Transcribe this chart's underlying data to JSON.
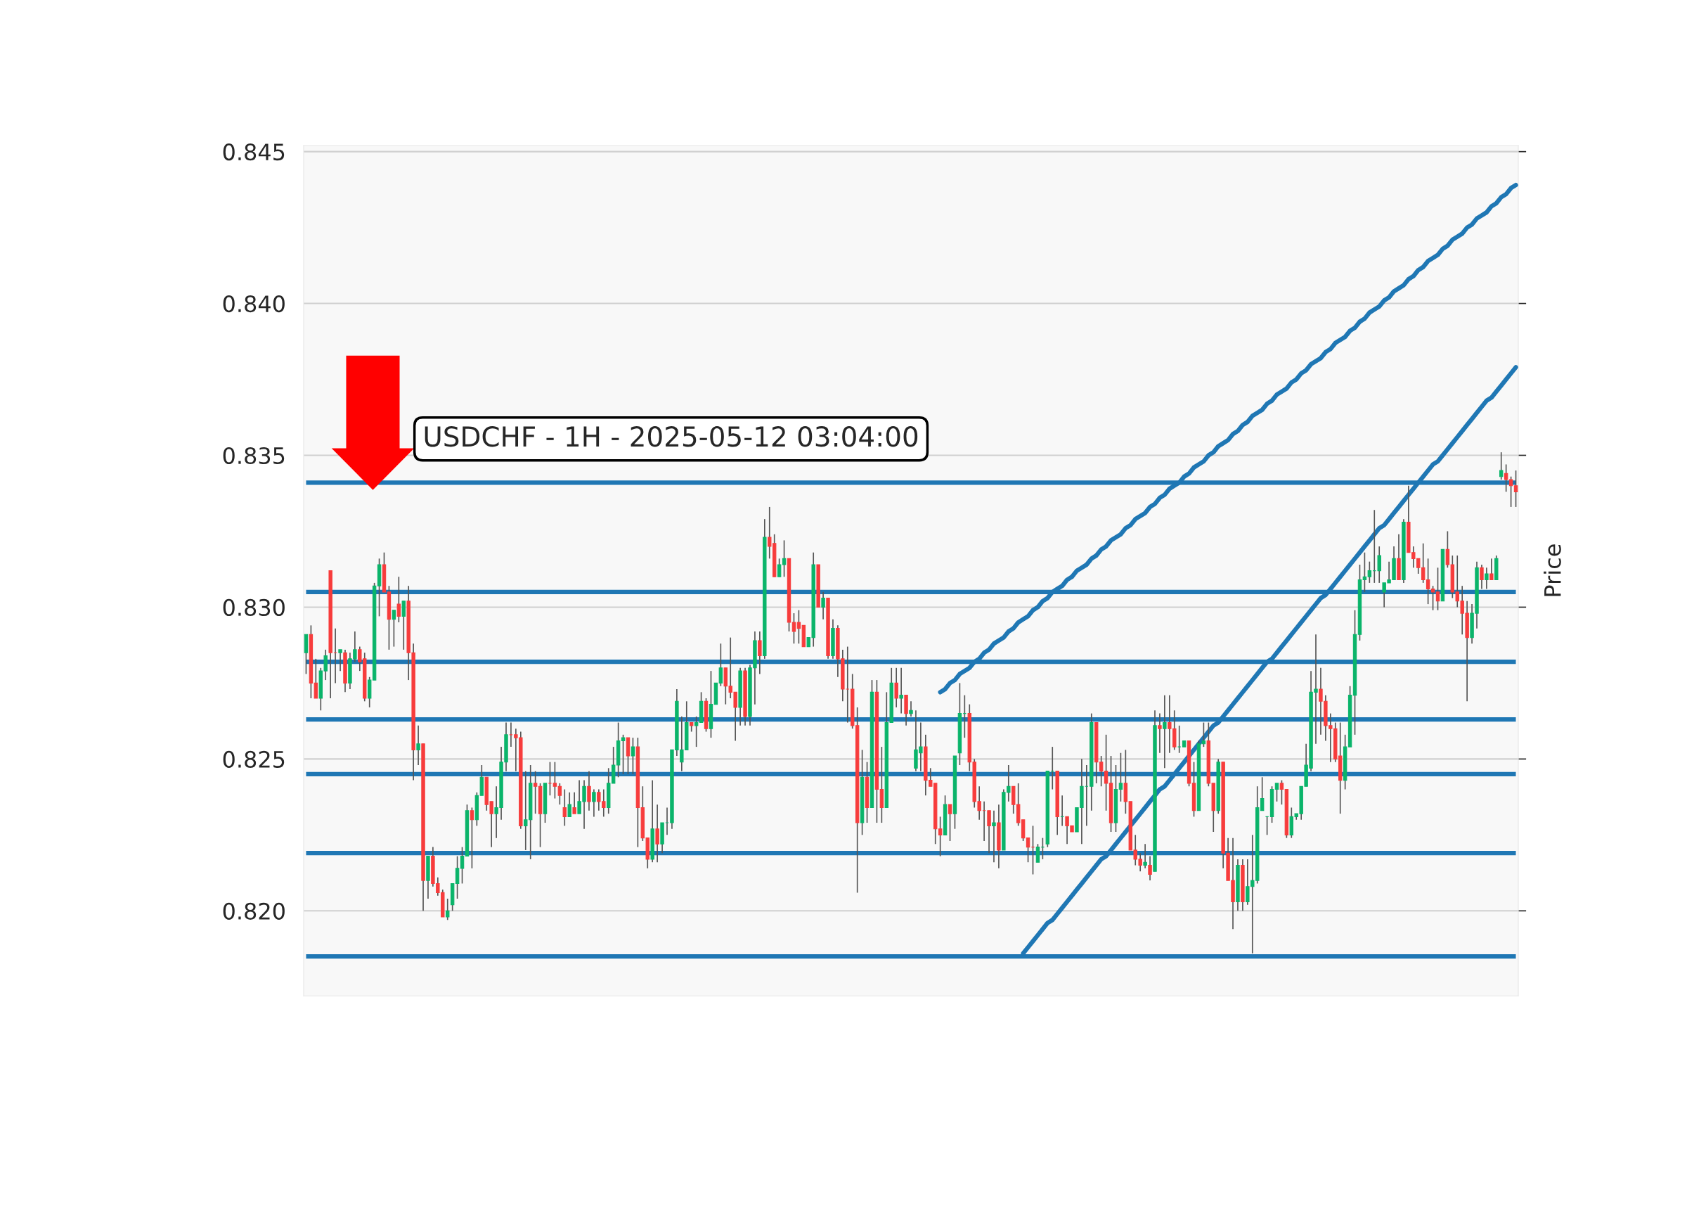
{
  "chart_data": {
    "type": "candlestick",
    "title": "USDCHF - 1H - 2025-05-12 03:04:00",
    "y2label": "Price",
    "categories": [
      null,
      null,
      null,
      null,
      null,
      null,
      null,
      null,
      null,
      null,
      null,
      null,
      null,
      null,
      null,
      null,
      null,
      null,
      null,
      null,
      null,
      null,
      null,
      null,
      null,
      null,
      null,
      null,
      null,
      null,
      null,
      null,
      null,
      null,
      null,
      null,
      null,
      null,
      null,
      null,
      null,
      null,
      null,
      null,
      null,
      null,
      null,
      null,
      null,
      null,
      null,
      null,
      null,
      null,
      null,
      null,
      null,
      null,
      null,
      null,
      null,
      null,
      null,
      null,
      null,
      null,
      null,
      null,
      null,
      null,
      null,
      null,
      null,
      null,
      null,
      null,
      null,
      null,
      null,
      null,
      null,
      null,
      null,
      null,
      null,
      null,
      null,
      null,
      null,
      null,
      null,
      null,
      null,
      null,
      null,
      null,
      null,
      null,
      null,
      null,
      null,
      null,
      null,
      null,
      null,
      null,
      null,
      null,
      null,
      null,
      null,
      null,
      null,
      null,
      null,
      null,
      null,
      null,
      null,
      null,
      null,
      null,
      null,
      null,
      null,
      null,
      null,
      null,
      null,
      null,
      null,
      null,
      null,
      null,
      null,
      null,
      null,
      null,
      null,
      null,
      null,
      null,
      null,
      null,
      null,
      null,
      null,
      null,
      null,
      null,
      null,
      null,
      null,
      null,
      null,
      null,
      null,
      null,
      null,
      null,
      null,
      null,
      null,
      null,
      null,
      null,
      null,
      null,
      null,
      null,
      null,
      null,
      null,
      null,
      null,
      null,
      null,
      null,
      null,
      null,
      null,
      null,
      null,
      null,
      null,
      null,
      null,
      null,
      null,
      null,
      null,
      null,
      null,
      null,
      null,
      null,
      null,
      null,
      null,
      null,
      null,
      null,
      null,
      null,
      null,
      null,
      null,
      null,
      null,
      null,
      null,
      null,
      null,
      null,
      null,
      null,
      null,
      null,
      null,
      null,
      null,
      null,
      null,
      null,
      null,
      null,
      null,
      null,
      null,
      null,
      null,
      null,
      null,
      null,
      null,
      null,
      null,
      null,
      null,
      null,
      null,
      null,
      null,
      null,
      null,
      null,
      null,
      null,
      null
    ],
    "colors": [
      "#0ab46a",
      "#f73c3c",
      "#f73c3c",
      "#0ab46a",
      "#0ab46a",
      "#f73c3c",
      "#f73c3c",
      "#0ab46a",
      "#f73c3c",
      "#0ab46a",
      "#0ab46a",
      "#f73c3c",
      "#f73c3c",
      "#0ab46a",
      "#0ab46a",
      "#0ab46a",
      "#f73c3c",
      "#f73c3c",
      "#0ab46a",
      "#f73c3c",
      "#0ab46a",
      "#f73c3c",
      "#f73c3c",
      "#0ab46a",
      "#f73c3c",
      "#0ab46a",
      "#f73c3c",
      "#f73c3c",
      "#f73c3c",
      "#0ab46a",
      "#0ab46a",
      "#0ab46a",
      "#0ab46a",
      "#0ab46a",
      "#f73c3c",
      "#0ab46a",
      "#0ab46a",
      "#f73c3c",
      "#f73c3c",
      "#0ab46a",
      "#0ab46a",
      "#0ab46a",
      "#f73c3c",
      "#f73c3c",
      "#f73c3c",
      "#0ab46a",
      "#0ab46a",
      "#f73c3c",
      "#f73c3c",
      "#0ab46a",
      "#f73c3c",
      "#f73c3c",
      "#f73c3c",
      "#f73c3c",
      "#0ab46a",
      "#f73c3c",
      "#0ab46a",
      "#0ab46a",
      "#f73c3c",
      "#0ab46a",
      "#f73c3c",
      "#f73c3c",
      "#0ab46a",
      "#0ab46a",
      "#0ab46a",
      "#0ab46a",
      "#f73c3c",
      "#0ab46a",
      "#f73c3c",
      "#f73c3c",
      "#f73c3c",
      "#0ab46a",
      "#f73c3c",
      "#0ab46a",
      "#0ab46a",
      "#0ab46a",
      "#0ab46a",
      "#0ab46a",
      "#0ab46a",
      "#f73c3c",
      "#0ab46a",
      "#0ab46a",
      "#f73c3c",
      "#0ab46a",
      "#0ab46a",
      "#0ab46a",
      "#f73c3c",
      "#f73c3c",
      "#f73c3c",
      "#0ab46a",
      "#f73c3c",
      "#0ab46a",
      "#0ab46a",
      "#f73c3c",
      "#0ab46a",
      "#f73c3c",
      "#f73c3c",
      "#0ab46a",
      "#0ab46a",
      "#f73c3c",
      "#f73c3c",
      "#f73c3c",
      "#f73c3c",
      "#0ab46a",
      "#0ab46a",
      "#f73c3c",
      "#0ab46a",
      "#f73c3c",
      "#0ab46a",
      "#f73c3c",
      "#f73c3c",
      "#f73c3c",
      "#f73c3c",
      "#f73c3c",
      "#0ab46a",
      "#f73c3c",
      "#0ab46a",
      "#f73c3c",
      "#f73c3c",
      "#0ab46a",
      "#0ab46a",
      "#f73c3c",
      "#0ab46a",
      "#f73c3c",
      "#0ab46a",
      "#0ab46a",
      "#0ab46a",
      "#f73c3c",
      "#f73c3c",
      "#f73c3c",
      "#f73c3c",
      "#0ab46a",
      "#f73c3c",
      "#0ab46a",
      "#0ab46a",
      "#0ab46a",
      "#f73c3c",
      "#f73c3c",
      "#f73c3c",
      "#f73c3c",
      "#f73c3c",
      "#0ab46a",
      "#f73c3c",
      "#0ab46a",
      "#0ab46a",
      "#f73c3c",
      "#f73c3c",
      "#f73c3c",
      "#f73c3c",
      "#f73c3c",
      "#0ab46a",
      "#0ab46a",
      "#0ab46a",
      "#0ab46a",
      "#f73c3c",
      "#0ab46a",
      "#f73c3c",
      "#f73c3c",
      "#0ab46a",
      "#0ab46a",
      "#0ab46a",
      "#0ab46a",
      "#f73c3c",
      "#f73c3c",
      "#f73c3c",
      "#f73c3c",
      "#0ab46a",
      "#0ab46a",
      "#f73c3c",
      "#f73c3c",
      "#f73c3c",
      "#f73c3c",
      "#0ab46a",
      "#f73c3c",
      "#0ab46a",
      "#f73c3c",
      "#0ab46a",
      "#f73c3c",
      "#f73c3c",
      "#0ab46a",
      "#0ab46a",
      "#f73c3c",
      "#f73c3c",
      "#0ab46a",
      "#0ab46a",
      "#f73c3c",
      "#f73c3c",
      "#0ab46a",
      "#f73c3c",
      "#f73c3c",
      "#f73c3c",
      "#0ab46a",
      "#f73c3c",
      "#0ab46a",
      "#0ab46a",
      "#0ab46a",
      "#0ab46a",
      "#0ab46a",
      "#0ab46a",
      "#0ab46a",
      "#f73c3c",
      "#f73c3c",
      "#0ab46a",
      "#0ab46a",
      "#0ab46a",
      "#0ab46a",
      "#0ab46a",
      "#0ab46a",
      "#f73c3c",
      "#f73c3c",
      "#f73c3c",
      "#f73c3c",
      "#f73c3c",
      "#0ab46a",
      "#0ab46a",
      "#0ab46a",
      "#0ab46a",
      "#0ab46a",
      "#0ab46a",
      "#0ab46a",
      "#0ab46a",
      "#0ab46a",
      "#0ab46a",
      "#0ab46a",
      "#f73c3c",
      "#0ab46a",
      "#f73c3c",
      "#f73c3c",
      "#f73c3c",
      "#f73c3c",
      "#f73c3c",
      "#f73c3c",
      "#f73c3c",
      "#0ab46a",
      "#f73c3c",
      "#f73c3c",
      "#f73c3c",
      "#f73c3c",
      "#f73c3c",
      "#0ab46a",
      "#0ab46a",
      "#f73c3c",
      "#0ab46a",
      "#f73c3c",
      "#0ab46a",
      "#0ab46a",
      "#f73c3c",
      "#f73c3c",
      "#f73c3c"
    ],
    "ylim": [
      0.8172,
      0.8452
    ],
    "yticks": [
      {
        "value": 0.82,
        "label": "0.820"
      },
      {
        "value": 0.825,
        "label": "0.825"
      },
      {
        "value": 0.83,
        "label": "0.830"
      },
      {
        "value": 0.835,
        "label": "0.835"
      },
      {
        "value": 0.84,
        "label": "0.840"
      },
      {
        "value": 0.845,
        "label": "0.845"
      }
    ],
    "grid": "y",
    "tick_labels": "y",
    "ref_lines": [
      {
        "axis": "y",
        "value": 0.8341,
        "color": "#1f77b4"
      },
      {
        "axis": "y",
        "value": 0.8305,
        "color": "#1f77b4"
      },
      {
        "axis": "y",
        "value": 0.8282,
        "color": "#1f77b4"
      },
      {
        "axis": "y",
        "value": 0.8263,
        "color": "#1f77b4"
      },
      {
        "axis": "y",
        "value": 0.8245,
        "color": "#1f77b4"
      },
      {
        "axis": "y",
        "value": 0.8219,
        "color": "#1f77b4"
      },
      {
        "axis": "y",
        "value": 0.8185,
        "color": "#1f77b4"
      }
    ],
    "series": [
      {
        "type": "line",
        "color": "#1f77b4",
        "values": [
          null,
          null,
          null,
          null,
          null,
          null,
          null,
          null,
          null,
          null,
          null,
          null,
          null,
          null,
          null,
          null,
          null,
          null,
          null,
          null,
          null,
          null,
          null,
          null,
          null,
          null,
          null,
          null,
          null,
          null,
          null,
          null,
          null,
          null,
          null,
          null,
          null,
          null,
          null,
          null,
          null,
          null,
          null,
          null,
          null,
          null,
          null,
          null,
          null,
          null,
          null,
          null,
          null,
          null,
          null,
          null,
          null,
          null,
          null,
          null,
          null,
          null,
          null,
          null,
          null,
          null,
          null,
          null,
          null,
          null,
          null,
          null,
          null,
          null,
          null,
          null,
          null,
          null,
          null,
          null,
          null,
          null,
          null,
          null,
          null,
          null,
          null,
          null,
          null,
          null,
          null,
          null,
          null,
          null,
          null,
          null,
          null,
          null,
          null,
          null,
          null,
          null,
          null,
          null,
          null,
          null,
          null,
          null,
          null,
          null,
          null,
          null,
          null,
          null,
          null,
          null,
          null,
          null,
          null,
          null,
          null,
          null,
          null,
          null,
          null,
          null,
          null,
          null,
          null,
          null,
          0.8272,
          0.8273,
          0.8275,
          0.8276,
          0.8278,
          0.8279,
          0.828,
          0.8282,
          0.8283,
          0.8285,
          0.8286,
          0.8288,
          0.8289,
          0.829,
          0.8292,
          0.8293,
          0.8295,
          0.8296,
          0.8297,
          0.8299,
          0.83,
          0.8302,
          0.8303,
          0.8305,
          0.8306,
          0.8307,
          0.8309,
          0.831,
          0.8312,
          0.8313,
          0.8314,
          0.8316,
          0.8317,
          0.8319,
          0.832,
          0.8322,
          0.8323,
          0.8324,
          0.8326,
          0.8327,
          0.8329,
          0.833,
          0.8331,
          0.8333,
          0.8334,
          0.8336,
          0.8337,
          0.8339,
          0.834,
          0.8341,
          0.8343,
          0.8344,
          0.8346,
          0.8347,
          0.8348,
          0.835,
          0.8351,
          0.8353,
          0.8354,
          0.8355,
          0.8357,
          0.8358,
          0.836,
          0.8361,
          0.8363,
          0.8364,
          0.8365,
          0.8367,
          0.8368,
          0.837,
          0.8371,
          0.8372,
          0.8374,
          0.8375,
          0.8377,
          0.8378,
          0.838,
          0.8381,
          0.8382,
          0.8384,
          0.8385,
          0.8387,
          0.8388,
          0.8389,
          0.8391,
          0.8392,
          0.8394,
          0.8395,
          0.8397,
          0.8398,
          0.8399,
          0.8401,
          0.8402,
          0.8404,
          0.8405,
          0.8406,
          0.8408,
          0.8409,
          0.8411,
          0.8412,
          0.8414,
          0.8415,
          0.8416,
          0.8418,
          0.8419,
          0.8421,
          0.8422,
          0.8423,
          0.8425,
          0.8426,
          0.8428,
          0.8429,
          0.843,
          0.8432,
          0.8433,
          0.8435,
          0.8436,
          0.8438,
          0.8439
        ]
      },
      {
        "type": "line",
        "color": "#1f77b4",
        "values": [
          null,
          null,
          null,
          null,
          null,
          null,
          null,
          null,
          null,
          null,
          null,
          null,
          null,
          null,
          null,
          null,
          null,
          null,
          null,
          null,
          null,
          null,
          null,
          null,
          null,
          null,
          null,
          null,
          null,
          null,
          null,
          null,
          null,
          null,
          null,
          null,
          null,
          null,
          null,
          null,
          null,
          null,
          null,
          null,
          null,
          null,
          null,
          null,
          null,
          null,
          null,
          null,
          null,
          null,
          null,
          null,
          null,
          null,
          null,
          null,
          null,
          null,
          null,
          null,
          null,
          null,
          null,
          null,
          null,
          null,
          null,
          null,
          null,
          null,
          null,
          null,
          null,
          null,
          null,
          null,
          null,
          null,
          null,
          null,
          null,
          null,
          null,
          null,
          null,
          null,
          null,
          null,
          null,
          null,
          null,
          null,
          null,
          null,
          null,
          null,
          null,
          null,
          null,
          null,
          null,
          null,
          null,
          null,
          null,
          null,
          null,
          null,
          null,
          null,
          null,
          null,
          null,
          null,
          null,
          null,
          null,
          null,
          null,
          null,
          null,
          null,
          null,
          null,
          null,
          null,
          null,
          null,
          null,
          null,
          null,
          null,
          null,
          null,
          null,
          null,
          null,
          null,
          null,
          null,
          null,
          null,
          null,
          0.8186,
          0.8188,
          0.819,
          0.8192,
          0.8194,
          0.8196,
          0.8197,
          0.8199,
          0.8201,
          0.8203,
          0.8205,
          0.8207,
          0.8209,
          0.8211,
          0.8213,
          0.8215,
          0.8217,
          0.8218,
          0.822,
          0.8222,
          0.8224,
          0.8226,
          0.8228,
          0.823,
          0.8232,
          0.8234,
          0.8236,
          0.8238,
          0.824,
          0.8241,
          0.8243,
          0.8245,
          0.8247,
          0.8249,
          0.8251,
          0.8253,
          0.8255,
          0.8257,
          0.8259,
          0.8261,
          0.8262,
          0.8264,
          0.8266,
          0.8268,
          0.827,
          0.8272,
          0.8274,
          0.8276,
          0.8278,
          0.828,
          0.8282,
          0.8283,
          0.8285,
          0.8287,
          0.8289,
          0.8291,
          0.8293,
          0.8295,
          0.8297,
          0.8299,
          0.8301,
          0.8303,
          0.8304,
          0.8306,
          0.8308,
          0.831,
          0.8312,
          0.8314,
          0.8316,
          0.8318,
          0.832,
          0.8322,
          0.8324,
          0.8326,
          0.8327,
          0.8329,
          0.8331,
          0.8333,
          0.8335,
          0.8337,
          0.8339,
          0.8341,
          0.8343,
          0.8345,
          0.8347,
          0.8348,
          0.835,
          0.8352,
          0.8354,
          0.8356,
          0.8358,
          0.836,
          0.8362,
          0.8364,
          0.8366,
          0.8368,
          0.8369,
          0.8371,
          0.8373,
          0.8375,
          0.8377,
          0.8379
        ]
      }
    ],
    "ohlc": [
      [
        0.8285,
        0.8291,
        0.8278,
        0.8291
      ],
      [
        0.8291,
        0.8294,
        0.827,
        0.8275
      ],
      [
        0.8275,
        0.8283,
        0.827,
        0.827
      ],
      [
        0.827,
        0.828,
        0.8266,
        0.8279
      ],
      [
        0.8279,
        0.8286,
        0.8276,
        0.8284
      ],
      [
        0.8312,
        0.8312,
        0.827,
        0.8285
      ],
      [
        0.8285,
        0.8293,
        0.8275,
        0.8285
      ],
      [
        0.8285,
        0.8286,
        0.8279,
        0.8286
      ],
      [
        0.8285,
        0.8286,
        0.8272,
        0.8275
      ],
      [
        0.8275,
        0.8285,
        0.8273,
        0.8283
      ],
      [
        0.8283,
        0.8292,
        0.8282,
        0.8286
      ],
      [
        0.8286,
        0.8287,
        0.8279,
        0.8282
      ],
      [
        0.8283,
        0.8285,
        0.8269,
        0.827
      ],
      [
        0.827,
        0.8277,
        0.8267,
        0.8276
      ],
      [
        0.8276,
        0.8308,
        0.8276,
        0.8307
      ],
      [
        0.8307,
        0.8316,
        0.8297,
        0.8314
      ],
      [
        0.8314,
        0.8318,
        0.8305,
        0.8305
      ],
      [
        0.8305,
        0.8307,
        0.8286,
        0.8296
      ],
      [
        0.8296,
        0.8299,
        0.8287,
        0.8299
      ],
      [
        0.8301,
        0.831,
        0.8295,
        0.8297
      ],
      [
        0.8297,
        0.8302,
        0.8286,
        0.8302
      ],
      [
        0.8302,
        0.8307,
        0.8276,
        0.8285
      ],
      [
        0.8285,
        0.8288,
        0.8243,
        0.8253
      ],
      [
        0.8253,
        0.8261,
        0.8248,
        0.8255
      ],
      [
        0.8255,
        0.8255,
        0.82,
        0.821
      ],
      [
        0.821,
        0.8218,
        0.8204,
        0.8218
      ],
      [
        0.8218,
        0.8221,
        0.8208,
        0.8209
      ],
      [
        0.8209,
        0.8211,
        0.8205,
        0.8206
      ],
      [
        0.8206,
        0.8207,
        0.8198,
        0.8198
      ],
      [
        0.8198,
        0.8204,
        0.8197,
        0.82
      ],
      [
        0.8202,
        0.8209,
        0.82,
        0.8209
      ],
      [
        0.8209,
        0.8218,
        0.8204,
        0.8214
      ],
      [
        0.8214,
        0.8221,
        0.8209,
        0.8218
      ],
      [
        0.8218,
        0.8235,
        0.8218,
        0.8233
      ],
      [
        0.8233,
        0.8234,
        0.8214,
        0.823
      ],
      [
        0.823,
        0.8239,
        0.8228,
        0.8238
      ],
      [
        0.8238,
        0.8248,
        0.8238,
        0.8244
      ],
      [
        0.8244,
        0.8244,
        0.8233,
        0.8235
      ],
      [
        0.8236,
        0.8236,
        0.8221,
        0.8232
      ],
      [
        0.8232,
        0.8241,
        0.8224,
        0.8234
      ],
      [
        0.8234,
        0.8254,
        0.823,
        0.8249
      ],
      [
        0.8249,
        0.8262,
        0.8246,
        0.8258
      ],
      [
        0.8258,
        0.8262,
        0.8254,
        0.8258
      ],
      [
        0.8258,
        0.826,
        0.8246,
        0.8257
      ],
      [
        0.8257,
        0.8259,
        0.8227,
        0.8228
      ],
      [
        0.8228,
        0.8246,
        0.822,
        0.823
      ],
      [
        0.823,
        0.8248,
        0.8217,
        0.8242
      ],
      [
        0.8242,
        0.8246,
        0.8232,
        0.8241
      ],
      [
        0.8241,
        0.8242,
        0.8221,
        0.8232
      ],
      [
        0.8232,
        0.8242,
        0.8229,
        0.8242
      ],
      [
        0.8242,
        0.8249,
        0.8238,
        0.8242
      ],
      [
        0.8242,
        0.8249,
        0.8237,
        0.8241
      ],
      [
        0.8241,
        0.8242,
        0.8235,
        0.8238
      ],
      [
        0.8234,
        0.824,
        0.8228,
        0.8231
      ],
      [
        0.8231,
        0.8239,
        0.8231,
        0.8235
      ],
      [
        0.8234,
        0.8239,
        0.8232,
        0.8232
      ],
      [
        0.8232,
        0.8243,
        0.8232,
        0.8236
      ],
      [
        0.8236,
        0.8243,
        0.8227,
        0.8241
      ],
      [
        0.8241,
        0.8246,
        0.8233,
        0.8236
      ],
      [
        0.8236,
        0.824,
        0.8231,
        0.8239
      ],
      [
        0.8239,
        0.824,
        0.8233,
        0.8236
      ],
      [
        0.8236,
        0.824,
        0.8231,
        0.8234
      ],
      [
        0.8234,
        0.8247,
        0.8232,
        0.8242
      ],
      [
        0.8242,
        0.8254,
        0.8242,
        0.8248
      ],
      [
        0.8248,
        0.8262,
        0.8244,
        0.8256
      ],
      [
        0.8256,
        0.8258,
        0.8245,
        0.8257
      ],
      [
        0.8257,
        0.8257,
        0.8245,
        0.8251
      ],
      [
        0.8251,
        0.8257,
        0.8245,
        0.8254
      ],
      [
        0.8254,
        0.8257,
        0.8221,
        0.8234
      ],
      [
        0.8234,
        0.8241,
        0.8223,
        0.8224
      ],
      [
        0.8224,
        0.8224,
        0.8214,
        0.8217
      ],
      [
        0.8217,
        0.8243,
        0.8216,
        0.8227
      ],
      [
        0.8227,
        0.8235,
        0.8216,
        0.8222
      ],
      [
        0.8222,
        0.8229,
        0.8219,
        0.8229
      ],
      [
        0.8229,
        0.8234,
        0.8225,
        0.8229
      ],
      [
        0.8229,
        0.8253,
        0.8227,
        0.8253
      ],
      [
        0.8253,
        0.8273,
        0.8251,
        0.8269
      ],
      [
        0.8249,
        0.8264,
        0.8246,
        0.8253
      ],
      [
        0.8253,
        0.8269,
        0.8253,
        0.8262
      ],
      [
        0.8262,
        0.8262,
        0.8259,
        0.8261
      ],
      [
        0.8261,
        0.8264,
        0.8254,
        0.8262
      ],
      [
        0.8262,
        0.8272,
        0.8262,
        0.8269
      ],
      [
        0.8269,
        0.827,
        0.8259,
        0.826
      ],
      [
        0.826,
        0.8279,
        0.8257,
        0.8268
      ],
      [
        0.8268,
        0.8275,
        0.8268,
        0.8275
      ],
      [
        0.8275,
        0.8288,
        0.8274,
        0.828
      ],
      [
        0.828,
        0.828,
        0.8268,
        0.8274
      ],
      [
        0.8274,
        0.829,
        0.827,
        0.8272
      ],
      [
        0.8272,
        0.8272,
        0.8256,
        0.8267
      ],
      [
        0.8267,
        0.828,
        0.8261,
        0.8279
      ],
      [
        0.8279,
        0.828,
        0.8261,
        0.8264
      ],
      [
        0.8264,
        0.8281,
        0.8261,
        0.828
      ],
      [
        0.828,
        0.8292,
        0.8268,
        0.8289
      ],
      [
        0.8289,
        0.8292,
        0.8278,
        0.8284
      ],
      [
        0.8284,
        0.8329,
        0.8283,
        0.8323
      ],
      [
        0.8323,
        0.8333,
        0.8316,
        0.832
      ],
      [
        0.8321,
        0.8324,
        0.831,
        0.831
      ],
      [
        0.831,
        0.8316,
        0.831,
        0.8314
      ],
      [
        0.8314,
        0.8322,
        0.831,
        0.8316
      ],
      [
        0.8316,
        0.8316,
        0.8292,
        0.8295
      ],
      [
        0.8295,
        0.8298,
        0.8288,
        0.8292
      ],
      [
        0.8295,
        0.8299,
        0.8288,
        0.8293
      ],
      [
        0.8294,
        0.8294,
        0.8287,
        0.8287
      ],
      [
        0.8287,
        0.829,
        0.8287,
        0.829
      ],
      [
        0.829,
        0.8318,
        0.8287,
        0.8314
      ],
      [
        0.8314,
        0.8314,
        0.83,
        0.83
      ],
      [
        0.83,
        0.8305,
        0.8296,
        0.8303
      ],
      [
        0.8303,
        0.8303,
        0.8283,
        0.8284
      ],
      [
        0.8284,
        0.8296,
        0.8283,
        0.8293
      ],
      [
        0.8293,
        0.8294,
        0.8277,
        0.8283
      ],
      [
        0.8283,
        0.8286,
        0.8269,
        0.8273
      ],
      [
        0.8273,
        0.8287,
        0.8262,
        0.8273
      ],
      [
        0.8273,
        0.8278,
        0.826,
        0.8261
      ],
      [
        0.8261,
        0.8267,
        0.8206,
        0.8229
      ],
      [
        0.8229,
        0.8253,
        0.8225,
        0.8244
      ],
      [
        0.8244,
        0.8249,
        0.8229,
        0.8234
      ],
      [
        0.8234,
        0.8276,
        0.8234,
        0.8272
      ],
      [
        0.8272,
        0.8276,
        0.8229,
        0.824
      ],
      [
        0.824,
        0.8254,
        0.8229,
        0.8234
      ],
      [
        0.8234,
        0.8272,
        0.8234,
        0.8262
      ],
      [
        0.8262,
        0.828,
        0.8262,
        0.8275
      ],
      [
        0.8275,
        0.828,
        0.8267,
        0.827
      ],
      [
        0.827,
        0.828,
        0.8265,
        0.8271
      ],
      [
        0.8271,
        0.8271,
        0.8261,
        0.8265
      ],
      [
        0.8265,
        0.8269,
        0.8264,
        0.8266
      ],
      [
        0.8247,
        0.8266,
        0.8246,
        0.8253
      ],
      [
        0.8252,
        0.8262,
        0.8246,
        0.8254
      ],
      [
        0.8254,
        0.8258,
        0.8238,
        0.8243
      ],
      [
        0.8243,
        0.8247,
        0.8241,
        0.8241
      ],
      [
        0.8242,
        0.8242,
        0.8222,
        0.8227
      ],
      [
        0.8227,
        0.8231,
        0.8218,
        0.8225
      ],
      [
        0.8225,
        0.8238,
        0.8225,
        0.8235
      ],
      [
        0.8235,
        0.8235,
        0.8223,
        0.8232
      ],
      [
        0.8232,
        0.8251,
        0.8227,
        0.8251
      ],
      [
        0.8252,
        0.8275,
        0.8248,
        0.8265
      ],
      [
        0.8265,
        0.8271,
        0.8257,
        0.8265
      ],
      [
        0.8265,
        0.8268,
        0.8246,
        0.8249
      ],
      [
        0.8249,
        0.825,
        0.8234,
        0.8236
      ],
      [
        0.8236,
        0.8241,
        0.823,
        0.8233
      ],
      [
        0.8233,
        0.8236,
        0.8223,
        0.8233
      ],
      [
        0.8233,
        0.8233,
        0.8219,
        0.8228
      ],
      [
        0.8228,
        0.8233,
        0.8216,
        0.8229
      ],
      [
        0.8229,
        0.8235,
        0.8214,
        0.822
      ],
      [
        0.822,
        0.824,
        0.822,
        0.8239
      ],
      [
        0.8239,
        0.8248,
        0.8236,
        0.8241
      ],
      [
        0.8241,
        0.8241,
        0.8232,
        0.8235
      ],
      [
        0.8235,
        0.8242,
        0.8228,
        0.8229
      ],
      [
        0.823,
        0.823,
        0.8223,
        0.8224
      ],
      [
        0.8224,
        0.8224,
        0.8216,
        0.8221
      ],
      [
        0.8221,
        0.8228,
        0.8212,
        0.8221
      ],
      [
        0.8216,
        0.8222,
        0.8216,
        0.8221
      ],
      [
        0.8221,
        0.8224,
        0.8217,
        0.8221
      ],
      [
        0.8222,
        0.8246,
        0.8221,
        0.8246
      ],
      [
        0.8246,
        0.8254,
        0.824,
        0.8246
      ],
      [
        0.8246,
        0.8246,
        0.8225,
        0.8231
      ],
      [
        0.8231,
        0.8238,
        0.8228,
        0.8231
      ],
      [
        0.8231,
        0.8231,
        0.8222,
        0.8228
      ],
      [
        0.8228,
        0.8228,
        0.8226,
        0.8226
      ],
      [
        0.8226,
        0.8234,
        0.8226,
        0.8234
      ],
      [
        0.8234,
        0.825,
        0.8222,
        0.8241
      ],
      [
        0.8241,
        0.8248,
        0.8228,
        0.8241
      ],
      [
        0.8241,
        0.8265,
        0.8233,
        0.8262
      ],
      [
        0.8262,
        0.8262,
        0.8242,
        0.8249
      ],
      [
        0.8249,
        0.8251,
        0.8241,
        0.8246
      ],
      [
        0.8246,
        0.8258,
        0.8233,
        0.8242
      ],
      [
        0.8242,
        0.8251,
        0.8226,
        0.8229
      ],
      [
        0.8229,
        0.8248,
        0.8226,
        0.824
      ],
      [
        0.824,
        0.8252,
        0.8236,
        0.8242
      ],
      [
        0.8242,
        0.8253,
        0.8232,
        0.8236
      ],
      [
        0.8236,
        0.8236,
        0.822,
        0.822
      ],
      [
        0.822,
        0.8225,
        0.8215,
        0.8217
      ],
      [
        0.8217,
        0.8219,
        0.8213,
        0.8215
      ],
      [
        0.8215,
        0.8222,
        0.8214,
        0.8216
      ],
      [
        0.8215,
        0.8218,
        0.821,
        0.8212
      ],
      [
        0.8213,
        0.8266,
        0.8213,
        0.8261
      ],
      [
        0.8261,
        0.8265,
        0.8252,
        0.826
      ],
      [
        0.826,
        0.8271,
        0.8247,
        0.8262
      ],
      [
        0.8262,
        0.8271,
        0.8252,
        0.826
      ],
      [
        0.826,
        0.8266,
        0.8253,
        0.8254
      ],
      [
        0.8254,
        0.8261,
        0.8252,
        0.8254
      ],
      [
        0.8254,
        0.8256,
        0.8254,
        0.8256
      ],
      [
        0.8256,
        0.8256,
        0.8241,
        0.8242
      ],
      [
        0.8242,
        0.8249,
        0.8231,
        0.8233
      ],
      [
        0.8233,
        0.8256,
        0.8233,
        0.8255
      ],
      [
        0.8255,
        0.8262,
        0.8254,
        0.8256
      ],
      [
        0.8256,
        0.8262,
        0.8241,
        0.8242
      ],
      [
        0.8242,
        0.8242,
        0.8226,
        0.8233
      ],
      [
        0.8233,
        0.825,
        0.8232,
        0.8249
      ],
      [
        0.8249,
        0.8249,
        0.8214,
        0.8219
      ],
      [
        0.8219,
        0.8224,
        0.821,
        0.821
      ],
      [
        0.821,
        0.8224,
        0.8194,
        0.8203
      ],
      [
        0.8203,
        0.8217,
        0.82,
        0.8215
      ],
      [
        0.8215,
        0.8217,
        0.82,
        0.8203
      ],
      [
        0.8203,
        0.8217,
        0.8202,
        0.8208
      ],
      [
        0.8208,
        0.8225,
        0.8186,
        0.821
      ],
      [
        0.821,
        0.8241,
        0.8209,
        0.8234
      ],
      [
        0.8233,
        0.8244,
        0.8233,
        0.8237
      ],
      [
        0.8231,
        0.8231,
        0.8225,
        0.8231
      ],
      [
        0.8231,
        0.8241,
        0.8229,
        0.824
      ],
      [
        0.824,
        0.8242,
        0.8236,
        0.8242
      ],
      [
        0.8242,
        0.8243,
        0.8235,
        0.824
      ],
      [
        0.824,
        0.824,
        0.8224,
        0.8225
      ],
      [
        0.8225,
        0.8234,
        0.8224,
        0.8231
      ],
      [
        0.8231,
        0.8232,
        0.823,
        0.8232
      ],
      [
        0.8232,
        0.8241,
        0.823,
        0.8241
      ],
      [
        0.8241,
        0.8255,
        0.8241,
        0.8248
      ],
      [
        0.8247,
        0.8279,
        0.8246,
        0.8272
      ],
      [
        0.8272,
        0.8291,
        0.8255,
        0.8273
      ],
      [
        0.8273,
        0.828,
        0.8258,
        0.8269
      ],
      [
        0.8269,
        0.8271,
        0.8256,
        0.8261
      ],
      [
        0.8261,
        0.8265,
        0.8249,
        0.826
      ],
      [
        0.826,
        0.8262,
        0.8249,
        0.825
      ],
      [
        0.8251,
        0.8262,
        0.8232,
        0.8243
      ],
      [
        0.8243,
        0.8258,
        0.824,
        0.8254
      ],
      [
        0.8254,
        0.8274,
        0.8254,
        0.8271
      ],
      [
        0.8271,
        0.8299,
        0.8258,
        0.8291
      ],
      [
        0.8291,
        0.8314,
        0.8289,
        0.8309
      ],
      [
        0.8309,
        0.8318,
        0.8305,
        0.831
      ],
      [
        0.831,
        0.8315,
        0.8308,
        0.8312
      ],
      [
        0.8312,
        0.8332,
        0.8308,
        0.8312
      ],
      [
        0.8312,
        0.832,
        0.8308,
        0.8317
      ],
      [
        0.8305,
        0.8308,
        0.83,
        0.8308
      ],
      [
        0.8308,
        0.8315,
        0.8308,
        0.8309
      ],
      [
        0.8309,
        0.832,
        0.8309,
        0.8316
      ],
      [
        0.8316,
        0.8324,
        0.8309,
        0.8309
      ],
      [
        0.8309,
        0.8329,
        0.8308,
        0.8328
      ],
      [
        0.8328,
        0.834,
        0.8318,
        0.8318
      ],
      [
        0.8318,
        0.832,
        0.8313,
        0.8316
      ],
      [
        0.8316,
        0.8316,
        0.8311,
        0.8313
      ],
      [
        0.8313,
        0.8321,
        0.8308,
        0.8309
      ],
      [
        0.8309,
        0.8316,
        0.8301,
        0.8306
      ],
      [
        0.8306,
        0.8307,
        0.8299,
        0.8305
      ],
      [
        0.8305,
        0.8313,
        0.8299,
        0.8302
      ],
      [
        0.8302,
        0.8319,
        0.8302,
        0.8319
      ],
      [
        0.8319,
        0.8325,
        0.8313,
        0.8314
      ],
      [
        0.8314,
        0.8317,
        0.8303,
        0.8305
      ],
      [
        0.8305,
        0.8317,
        0.83,
        0.8302
      ],
      [
        0.8302,
        0.8307,
        0.8291,
        0.8298
      ],
      [
        0.8298,
        0.8302,
        0.8269,
        0.829
      ],
      [
        0.829,
        0.8301,
        0.8288,
        0.8298
      ],
      [
        0.8298,
        0.8315,
        0.8293,
        0.8313
      ],
      [
        0.8313,
        0.8314,
        0.8306,
        0.8309
      ],
      [
        0.8309,
        0.8313,
        0.8306,
        0.8311
      ],
      [
        0.8311,
        0.8316,
        0.8309,
        0.8309
      ],
      [
        0.8309,
        0.8317,
        0.8309,
        0.8316
      ],
      [
        0.8343,
        0.8351,
        0.8342,
        0.8345
      ],
      [
        0.8344,
        0.8347,
        0.8338,
        0.8342
      ],
      [
        0.8342,
        0.8343,
        0.8333,
        0.834
      ],
      [
        0.834,
        0.8345,
        0.8333,
        0.8338
      ]
    ]
  }
}
